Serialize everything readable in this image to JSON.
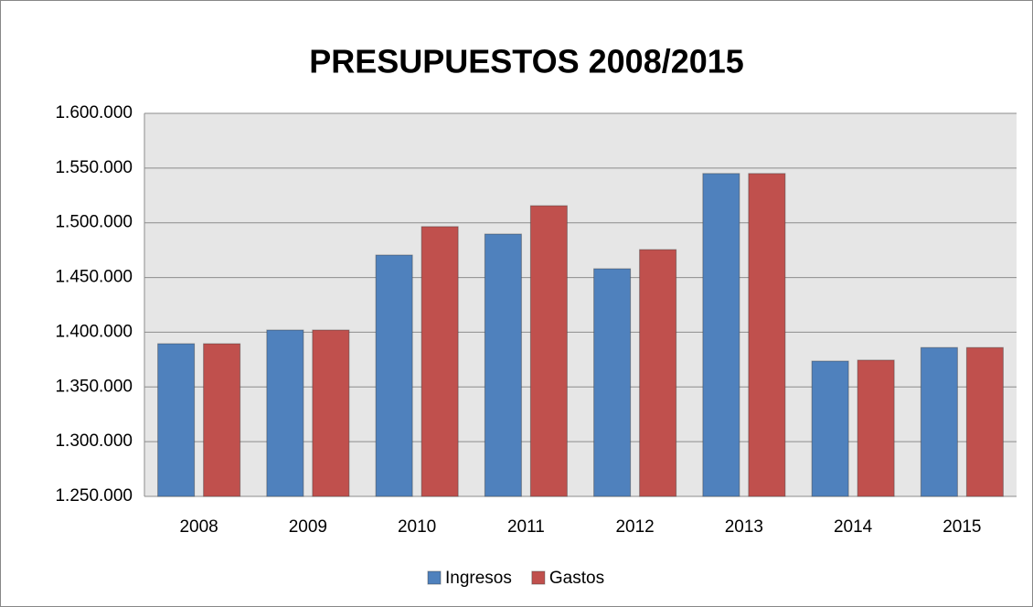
{
  "chart_data": {
    "type": "bar",
    "title": "PRESUPUESTOS 2008/2015",
    "categories": [
      "2008",
      "2009",
      "2010",
      "2011",
      "2012",
      "2013",
      "2014",
      "2015"
    ],
    "series": [
      {
        "name": "Ingresos",
        "color": "#4f81bd",
        "values": [
          1389500,
          1402000,
          1470500,
          1489700,
          1458000,
          1545000,
          1373600,
          1386000
        ]
      },
      {
        "name": "Gastos",
        "color": "#c0504d",
        "values": [
          1389500,
          1402000,
          1496500,
          1515600,
          1475500,
          1545000,
          1374500,
          1386000
        ]
      }
    ],
    "ylim": [
      1250000,
      1600000
    ],
    "yticks": [
      {
        "value": 1250000,
        "label": "1.250.000"
      },
      {
        "value": 1300000,
        "label": "1.300.000"
      },
      {
        "value": 1350000,
        "label": "1.350.000"
      },
      {
        "value": 1400000,
        "label": "1.400.000"
      },
      {
        "value": 1450000,
        "label": "1.450.000"
      },
      {
        "value": 1500000,
        "label": "1.500.000"
      },
      {
        "value": 1550000,
        "label": "1.550.000"
      },
      {
        "value": 1600000,
        "label": "1.600.000"
      }
    ],
    "grid": true,
    "legend": "bottom"
  }
}
